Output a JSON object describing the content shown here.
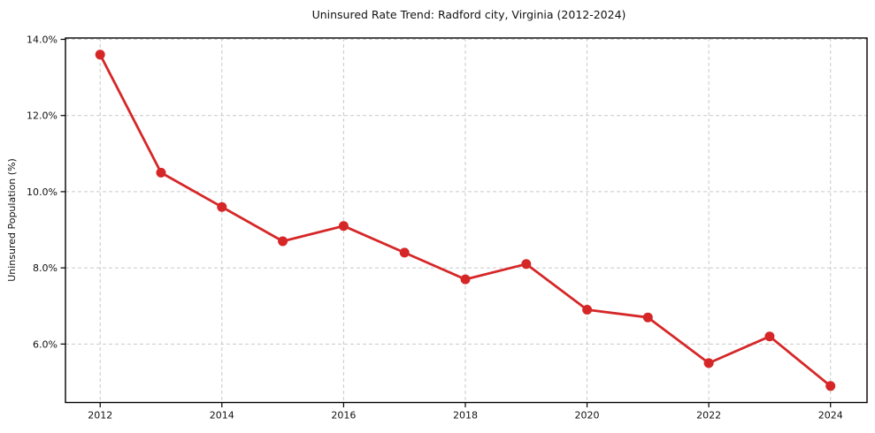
{
  "chart_data": {
    "type": "line",
    "title": "Uninsured Rate Trend: Radford city, Virginia (2012-2024)",
    "xlabel": "",
    "ylabel": "Uninsured Population (%)",
    "x": [
      2012,
      2013,
      2014,
      2015,
      2016,
      2017,
      2018,
      2019,
      2020,
      2021,
      2022,
      2023,
      2024
    ],
    "series": [
      {
        "name": "Uninsured rate",
        "values": [
          13.6,
          10.5,
          9.6,
          8.7,
          9.1,
          8.4,
          7.7,
          8.1,
          6.9,
          6.7,
          5.5,
          6.2,
          4.9
        ]
      }
    ],
    "x_ticks": [
      2012,
      2014,
      2016,
      2018,
      2020,
      2022,
      2024
    ],
    "x_tick_labels": [
      "2012",
      "2014",
      "2016",
      "2018",
      "2020",
      "2022",
      "2024"
    ],
    "y_ticks": [
      6,
      8,
      10,
      12,
      14
    ],
    "y_tick_labels": [
      "6.0%",
      "8.0%",
      "10.0%",
      "12.0%",
      "14.0%"
    ],
    "xlim": [
      2011.43,
      2024.6
    ],
    "ylim": [
      4.465,
      14.035
    ],
    "grid": true,
    "grid_style": "dashed",
    "legend": "none",
    "marker": "circle",
    "line_color": "#d62728",
    "grid_color": "#c9c9c9",
    "axis_color": "#000000",
    "text_color": "#111111",
    "background_color": "#ffffff"
  }
}
